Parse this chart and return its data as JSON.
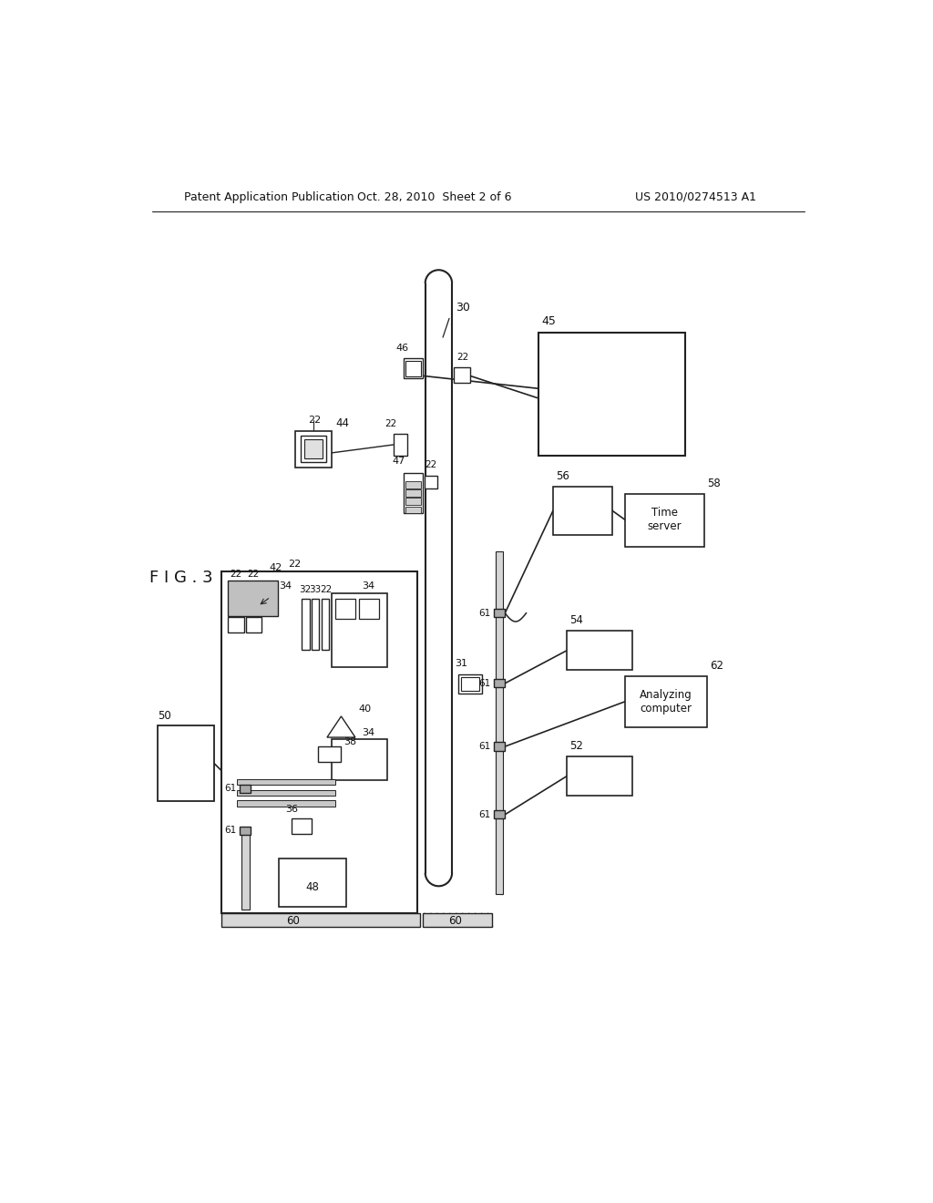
{
  "header_left": "Patent Application Publication",
  "header_center": "Oct. 28, 2010  Sheet 2 of 6",
  "header_right": "US 2010/0274513 A1",
  "fig_label": "F I G . 3",
  "bg": "#ffffff",
  "lc": "#222222",
  "tc": "#111111",
  "time_server": "Time\nserver",
  "analyzing_computer": "Analyzing\ncomputer"
}
